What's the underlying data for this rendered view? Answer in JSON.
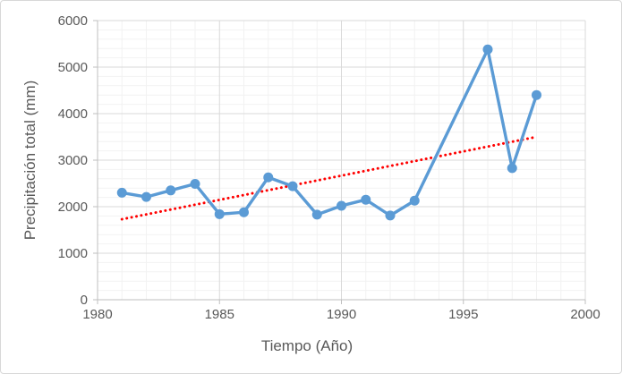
{
  "chart_data": {
    "type": "line",
    "title": "",
    "xlabel": "Tiempo (Año)",
    "ylabel": "Precipitación total (mm)",
    "xlim": [
      1980,
      2000
    ],
    "ylim": [
      0,
      6000
    ],
    "x_major_ticks": [
      1980,
      1985,
      1990,
      1995,
      2000
    ],
    "y_major_ticks": [
      0,
      1000,
      2000,
      3000,
      4000,
      5000,
      6000
    ],
    "x_minor_step": 1,
    "y_minor_step": 200,
    "grid": {
      "major": true,
      "minor": true
    },
    "legend_position": "none",
    "series": [
      {
        "name": "Precipitación total",
        "color": "#5B9BD5",
        "marker": "circle",
        "x": [
          1981,
          1982,
          1983,
          1984,
          1985,
          1986,
          1987,
          1988,
          1989,
          1990,
          1991,
          1992,
          1993,
          1996,
          1997,
          1998
        ],
        "y": [
          2300,
          2210,
          2350,
          2490,
          1840,
          1880,
          2630,
          2440,
          1830,
          2020,
          2150,
          1810,
          2130,
          5380,
          2830,
          4400
        ]
      }
    ],
    "trendline": {
      "name": "linear-trend",
      "color": "#FF0000",
      "style": "dotted",
      "x": [
        1981,
        1998
      ],
      "y": [
        1730,
        3500
      ]
    },
    "style_colors": {
      "axis_line": "#BFBFBF",
      "major_grid": "#D9D9D9",
      "minor_grid": "#F2F2F2",
      "tick_label": "#595959",
      "axis_title": "#595959",
      "background": "#FFFFFF",
      "frame_border": "#D8D8D8"
    }
  }
}
